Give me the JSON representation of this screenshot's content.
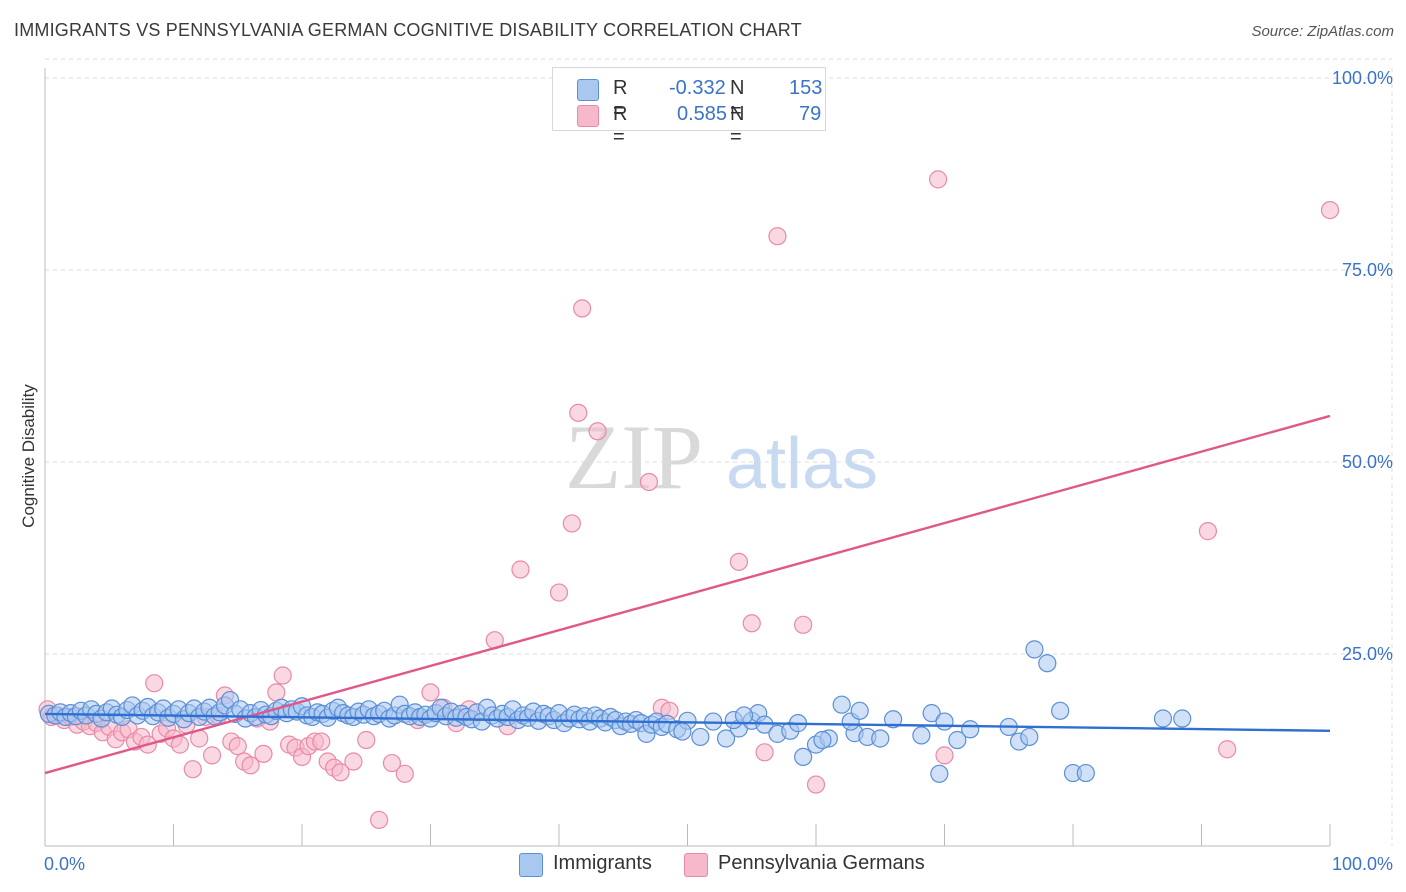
{
  "title": "IMMIGRANTS VS PENNSYLVANIA GERMAN COGNITIVE DISABILITY CORRELATION CHART",
  "source": "Source: ZipAtlas.com",
  "watermark": {
    "zip": "ZIP",
    "atlas": "atlas"
  },
  "legend": {
    "rows": [
      {
        "r_label": "R =",
        "r_value": "-0.332",
        "n_label": "N =",
        "n_value": "153"
      },
      {
        "r_label": "R =",
        "r_value": "0.585",
        "n_label": "N =",
        "n_value": "79"
      }
    ]
  },
  "bottom_legend": {
    "series1": "Immigrants",
    "series2": "Pennsylvania Germans"
  },
  "colors": {
    "blue_fill": "#a9c8f0",
    "blue_stroke": "#5b8fd6",
    "blue_line": "#2f6fd1",
    "pink_fill": "#f6b8cb",
    "pink_stroke": "#e88aa8",
    "pink_line": "#e0588a",
    "axis_text": "#3b73c9",
    "grid": "#dddddd"
  },
  "chart_data": {
    "type": "scatter",
    "title": "IMMIGRANTS VS PENNSYLVANIA GERMAN COGNITIVE DISABILITY CORRELATION CHART",
    "xlabel": "",
    "ylabel": "Cognitive Disability",
    "xlim": [
      0,
      100
    ],
    "ylim": [
      0,
      100
    ],
    "x_tick_labels": [
      "0.0%",
      "100.0%"
    ],
    "y_tick_labels": [
      "25.0%",
      "50.0%",
      "75.0%",
      "100.0%"
    ],
    "y_ticks": [
      25,
      50,
      75,
      100
    ],
    "grid": true,
    "series": [
      {
        "name": "Immigrants",
        "trend": {
          "x": [
            0,
            100
          ],
          "y": [
            17.2,
            15.0
          ]
        },
        "points": [
          [
            0.3,
            17.2
          ],
          [
            0.8,
            17.0
          ],
          [
            1.2,
            17.4
          ],
          [
            1.6,
            16.8
          ],
          [
            2.0,
            17.3
          ],
          [
            2.4,
            16.9
          ],
          [
            2.8,
            17.6
          ],
          [
            3.2,
            17.0
          ],
          [
            3.6,
            17.8
          ],
          [
            4.0,
            17.2
          ],
          [
            4.4,
            16.6
          ],
          [
            4.8,
            17.4
          ],
          [
            5.2,
            17.9
          ],
          [
            5.6,
            17.1
          ],
          [
            6.0,
            16.8
          ],
          [
            6.4,
            17.7
          ],
          [
            6.8,
            18.3
          ],
          [
            7.2,
            17.0
          ],
          [
            7.6,
            17.6
          ],
          [
            8.0,
            18.1
          ],
          [
            8.4,
            16.9
          ],
          [
            8.8,
            17.4
          ],
          [
            9.2,
            17.9
          ],
          [
            9.6,
            16.7
          ],
          [
            10.0,
            17.2
          ],
          [
            10.4,
            17.8
          ],
          [
            10.8,
            16.5
          ],
          [
            11.2,
            17.3
          ],
          [
            11.6,
            17.9
          ],
          [
            12.0,
            16.8
          ],
          [
            12.4,
            17.5
          ],
          [
            12.8,
            18.0
          ],
          [
            13.2,
            16.9
          ],
          [
            13.6,
            17.4
          ],
          [
            14.0,
            18.3
          ],
          [
            14.4,
            19.0
          ],
          [
            14.8,
            17.2
          ],
          [
            15.2,
            17.8
          ],
          [
            15.6,
            16.6
          ],
          [
            16.0,
            17.3
          ],
          [
            16.4,
            16.8
          ],
          [
            16.8,
            17.7
          ],
          [
            17.2,
            17.1
          ],
          [
            17.6,
            16.9
          ],
          [
            18.0,
            17.6
          ],
          [
            18.4,
            18.0
          ],
          [
            18.8,
            17.3
          ],
          [
            19.2,
            17.8
          ],
          [
            19.6,
            17.5
          ],
          [
            20.0,
            18.2
          ],
          [
            20.4,
            17.0
          ],
          [
            20.8,
            16.8
          ],
          [
            21.2,
            17.4
          ],
          [
            21.6,
            17.2
          ],
          [
            22.0,
            16.7
          ],
          [
            22.4,
            17.6
          ],
          [
            22.8,
            18.0
          ],
          [
            23.2,
            17.3
          ],
          [
            23.6,
            17.0
          ],
          [
            24.0,
            16.8
          ],
          [
            24.4,
            17.5
          ],
          [
            24.8,
            17.1
          ],
          [
            25.2,
            17.8
          ],
          [
            25.6,
            16.9
          ],
          [
            26.0,
            17.2
          ],
          [
            26.4,
            17.6
          ],
          [
            26.8,
            16.6
          ],
          [
            27.2,
            17.0
          ],
          [
            27.6,
            18.4
          ],
          [
            28.0,
            17.2
          ],
          [
            28.4,
            16.9
          ],
          [
            28.8,
            17.4
          ],
          [
            29.2,
            16.8
          ],
          [
            29.6,
            17.1
          ],
          [
            30.0,
            16.6
          ],
          [
            30.4,
            17.3
          ],
          [
            30.8,
            18.0
          ],
          [
            31.2,
            16.9
          ],
          [
            31.6,
            17.5
          ],
          [
            32.0,
            16.7
          ],
          [
            32.4,
            17.2
          ],
          [
            32.8,
            16.8
          ],
          [
            33.2,
            16.5
          ],
          [
            33.6,
            17.4
          ],
          [
            34.0,
            16.2
          ],
          [
            34.4,
            18.0
          ],
          [
            34.8,
            17.0
          ],
          [
            35.2,
            16.6
          ],
          [
            35.6,
            17.2
          ],
          [
            36.0,
            16.8
          ],
          [
            36.4,
            17.8
          ],
          [
            36.8,
            16.4
          ],
          [
            37.2,
            17.0
          ],
          [
            37.6,
            16.7
          ],
          [
            38.0,
            17.5
          ],
          [
            38.4,
            16.3
          ],
          [
            38.8,
            17.2
          ],
          [
            39.2,
            16.9
          ],
          [
            39.6,
            16.4
          ],
          [
            40.0,
            17.3
          ],
          [
            40.4,
            16.0
          ],
          [
            40.8,
            16.6
          ],
          [
            41.2,
            17.1
          ],
          [
            41.6,
            16.5
          ],
          [
            42.0,
            16.9
          ],
          [
            42.4,
            16.2
          ],
          [
            42.8,
            17.0
          ],
          [
            43.2,
            16.6
          ],
          [
            43.6,
            16.1
          ],
          [
            44.0,
            16.8
          ],
          [
            44.4,
            16.4
          ],
          [
            44.8,
            15.6
          ],
          [
            45.2,
            16.2
          ],
          [
            45.6,
            15.9
          ],
          [
            46.0,
            16.4
          ],
          [
            46.4,
            16.0
          ],
          [
            46.8,
            14.6
          ],
          [
            47.2,
            15.8
          ],
          [
            47.6,
            16.2
          ],
          [
            48.0,
            15.5
          ],
          [
            48.4,
            15.9
          ],
          [
            49.2,
            15.2
          ],
          [
            50.0,
            16.3
          ],
          [
            51.0,
            14.2
          ],
          [
            52.0,
            16.2
          ],
          [
            53.0,
            14.0
          ],
          [
            54.0,
            15.3
          ],
          [
            55.0,
            16.3
          ],
          [
            55.5,
            17.3
          ],
          [
            56.0,
            15.8
          ],
          [
            57.0,
            14.6
          ],
          [
            58.0,
            15.0
          ],
          [
            59.0,
            11.6
          ],
          [
            60.0,
            13.2
          ],
          [
            61.0,
            14.0
          ],
          [
            62.0,
            18.4
          ],
          [
            63.0,
            14.7
          ],
          [
            64.0,
            14.2
          ],
          [
            65.0,
            14.0
          ],
          [
            66.0,
            16.5
          ],
          [
            69.0,
            17.3
          ],
          [
            70.0,
            16.2
          ],
          [
            71.0,
            13.8
          ],
          [
            72.0,
            15.2
          ],
          [
            75.0,
            15.5
          ],
          [
            77.0,
            25.6
          ],
          [
            78.0,
            23.8
          ],
          [
            79.0,
            17.6
          ],
          [
            80.0,
            9.5
          ],
          [
            81.0,
            9.5
          ],
          [
            87.0,
            16.6
          ],
          [
            88.5,
            16.6
          ],
          [
            60.5,
            13.8
          ],
          [
            53.6,
            16.4
          ],
          [
            49.6,
            14.9
          ],
          [
            54.4,
            17.0
          ],
          [
            58.6,
            16.0
          ],
          [
            68.2,
            14.4
          ],
          [
            69.6,
            9.4
          ],
          [
            62.7,
            16.2
          ],
          [
            75.8,
            13.6
          ],
          [
            76.6,
            14.2
          ],
          [
            63.4,
            17.6
          ]
        ]
      },
      {
        "name": "Pennsylvania Germans",
        "trend": {
          "x": [
            0,
            100
          ],
          "y": [
            9.5,
            56.0
          ]
        },
        "points": [
          [
            0.2,
            17.8
          ],
          [
            0.5,
            16.8
          ],
          [
            1.0,
            17.0
          ],
          [
            1.5,
            16.4
          ],
          [
            2.0,
            16.8
          ],
          [
            2.5,
            15.8
          ],
          [
            3.0,
            16.2
          ],
          [
            3.5,
            15.6
          ],
          [
            4.0,
            16.0
          ],
          [
            4.5,
            14.8
          ],
          [
            5.0,
            15.5
          ],
          [
            5.5,
            13.9
          ],
          [
            6.0,
            14.8
          ],
          [
            6.5,
            15.2
          ],
          [
            7.0,
            13.6
          ],
          [
            7.5,
            14.2
          ],
          [
            8.0,
            13.2
          ],
          [
            8.5,
            21.2
          ],
          [
            9.0,
            14.6
          ],
          [
            9.5,
            15.3
          ],
          [
            10.0,
            14.0
          ],
          [
            10.5,
            13.2
          ],
          [
            11.0,
            15.8
          ],
          [
            11.5,
            10.0
          ],
          [
            12.0,
            14.0
          ],
          [
            12.5,
            16.8
          ],
          [
            13.0,
            11.8
          ],
          [
            13.5,
            17.0
          ],
          [
            14.0,
            19.6
          ],
          [
            14.5,
            13.6
          ],
          [
            15.0,
            13.0
          ],
          [
            15.5,
            11.0
          ],
          [
            16.0,
            10.5
          ],
          [
            16.5,
            16.6
          ],
          [
            17.0,
            12.0
          ],
          [
            17.5,
            16.2
          ],
          [
            18.0,
            20.0
          ],
          [
            18.5,
            22.2
          ],
          [
            19.0,
            13.2
          ],
          [
            19.5,
            12.8
          ],
          [
            20.0,
            11.6
          ],
          [
            20.5,
            13.0
          ],
          [
            21.0,
            13.6
          ],
          [
            21.5,
            13.6
          ],
          [
            22.0,
            11.0
          ],
          [
            22.5,
            10.2
          ],
          [
            23.0,
            9.6
          ],
          [
            24.0,
            11.0
          ],
          [
            25.0,
            13.8
          ],
          [
            26.0,
            3.4
          ],
          [
            27.0,
            10.8
          ],
          [
            28.0,
            9.4
          ],
          [
            29.0,
            16.4
          ],
          [
            30.0,
            20.0
          ],
          [
            31.0,
            18.0
          ],
          [
            32.0,
            16.0
          ],
          [
            33.0,
            17.8
          ],
          [
            35.0,
            26.8
          ],
          [
            36.0,
            15.6
          ],
          [
            37.0,
            36.0
          ],
          [
            40.0,
            33.0
          ],
          [
            41.0,
            42.0
          ],
          [
            41.5,
            56.4
          ],
          [
            43.0,
            54.0
          ],
          [
            47.0,
            47.4
          ],
          [
            48.0,
            18.0
          ],
          [
            54.0,
            37.0
          ],
          [
            55.0,
            29.0
          ],
          [
            56.0,
            12.2
          ],
          [
            57.0,
            79.4
          ],
          [
            59.0,
            28.8
          ],
          [
            60.0,
            8.0
          ],
          [
            69.5,
            86.8
          ],
          [
            70.0,
            11.8
          ],
          [
            90.5,
            41.0
          ],
          [
            92.0,
            12.6
          ],
          [
            100.0,
            82.8
          ],
          [
            48.6,
            17.6
          ],
          [
            41.8,
            70.0
          ]
        ]
      }
    ]
  }
}
